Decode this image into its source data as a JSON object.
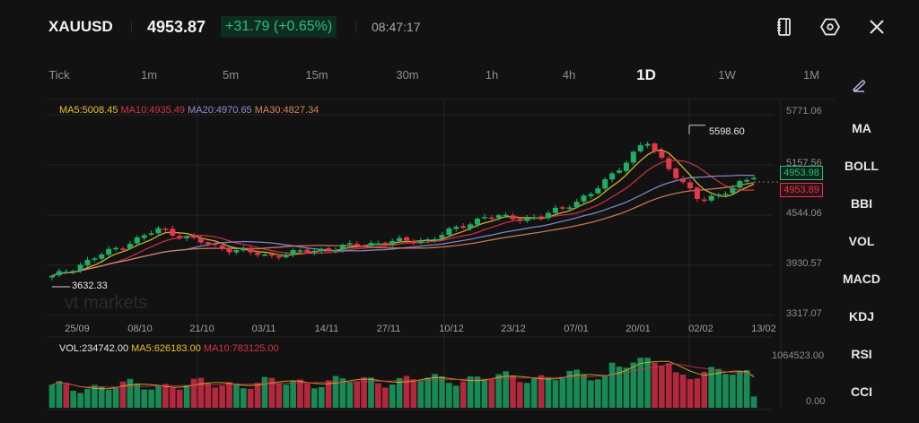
{
  "header": {
    "symbol": "XAUUSD",
    "price": "4953.87",
    "change": "+31.79 (+0.65%)",
    "time": "08:47:17",
    "icons": [
      "notebook-icon",
      "settings-hex-icon",
      "close-icon"
    ]
  },
  "timeframes": {
    "items": [
      "Tick",
      "1m",
      "5m",
      "15m",
      "30m",
      "1h",
      "4h",
      "1D",
      "1W",
      "1M"
    ],
    "active": "1D"
  },
  "indicators_panel": {
    "draw_tool_icon": "pen-icon",
    "items": [
      "MA",
      "BOLL",
      "BBI",
      "VOL",
      "MACD",
      "KDJ",
      "RSI",
      "CCI"
    ]
  },
  "colors": {
    "background": "#121212",
    "up": "#1fae67",
    "down": "#e5364b",
    "ma5": "#e6c229",
    "ma10": "#d9314a",
    "ma20": "#8c8fd6",
    "ma30": "#d8835a",
    "grid": "#242424"
  },
  "ma_legend": {
    "ma5": "MA5:5008.45",
    "ma10": "MA10:4935.49",
    "ma20": "MA20:4970.65",
    "ma30": "MA30:4827.34"
  },
  "vol_legend": {
    "vol": "VOL:234742.00",
    "ma5": "MA5:626183.00",
    "ma10": "MA10:783125.00"
  },
  "price_axis": [
    "5771.06",
    "5157.56",
    "4544.06",
    "3930.57",
    "3317.07"
  ],
  "vol_axis": [
    "1064523.00",
    "0.00"
  ],
  "price_boxes": {
    "bid": "4953.98",
    "ask": "4953.89"
  },
  "annotations": {
    "high": "5598.60",
    "low": "3632.33"
  },
  "watermark": "vt markets",
  "x_axis": [
    "25/09",
    "08/10",
    "21/10",
    "03/11",
    "14/11",
    "27/11",
    "10/12",
    "23/12",
    "07/01",
    "20/01",
    "02/02",
    "13/02"
  ],
  "chart_data": {
    "type": "candlestick",
    "title": "XAUUSD 1D",
    "xlabel": "",
    "ylabel": "",
    "x_ticks": [
      "25/09",
      "08/10",
      "21/10",
      "03/11",
      "14/11",
      "27/11",
      "10/12",
      "23/12",
      "07/01",
      "20/01",
      "02/02",
      "13/02"
    ],
    "ylim": [
      3317.07,
      5771.06
    ],
    "y_ticks": [
      5771.06,
      5157.56,
      4544.06,
      3930.57,
      3317.07
    ],
    "grid": true,
    "legend": [
      "MA5:5008.45",
      "MA10:4935.49",
      "MA20:4970.65",
      "MA30:4827.34"
    ],
    "legend_position": "top-left",
    "annotations": {
      "high": 5598.6,
      "low": 3632.33
    },
    "last_price": 4953.87,
    "approx_close_path": [
      {
        "date": "25/09",
        "close": 3740
      },
      {
        "date": "08/10",
        "close": 4040
      },
      {
        "date": "21/10",
        "close": 4330
      },
      {
        "date": "21/10+",
        "close": 4120
      },
      {
        "date": "03/11",
        "close": 4000
      },
      {
        "date": "14/11",
        "close": 4080
      },
      {
        "date": "27/11",
        "close": 4160
      },
      {
        "date": "10/12",
        "close": 4200
      },
      {
        "date": "23/12",
        "close": 4480
      },
      {
        "date": "07/01",
        "close": 4460
      },
      {
        "date": "20/01",
        "close": 4760
      },
      {
        "date": "29/01",
        "close": 5400
      },
      {
        "date": "02/02",
        "close": 4660
      },
      {
        "date": "13/02",
        "close": 4953.87
      }
    ],
    "volume_panel": {
      "type": "bar",
      "ylim": [
        0,
        1064523.0
      ],
      "vol": 234742.0,
      "ma5": 626183.0,
      "ma10": 783125.0
    }
  }
}
